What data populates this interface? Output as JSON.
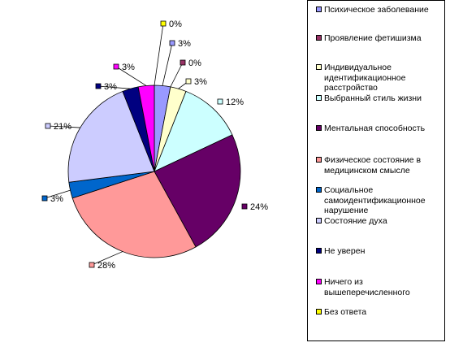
{
  "chart_data": {
    "type": "pie",
    "title": "",
    "slices": [
      {
        "label": "Психическое заболевание",
        "value": 3,
        "value_label": "3%",
        "color": "#9999ff"
      },
      {
        "label": "Проявление фетишизма",
        "value": 0,
        "value_label": "0%",
        "color": "#993366"
      },
      {
        "label": "Индивидуальное идентификационное расстройство",
        "value": 3,
        "value_label": "3%",
        "color": "#ffffcc"
      },
      {
        "label": "Выбранный стиль жизни",
        "value": 12,
        "value_label": "12%",
        "color": "#ccffff"
      },
      {
        "label": "Ментальная способность",
        "value": 24,
        "value_label": "24%",
        "color": "#660066"
      },
      {
        "label": "Физическое состояние в медицинском смысле",
        "value": 28,
        "value_label": "28%",
        "color": "#ff9999"
      },
      {
        "label": "Социальное самоидентификационное нарушение",
        "value": 3,
        "value_label": "3%",
        "color": "#0066cc"
      },
      {
        "label": "Состояние духа",
        "value": 21,
        "value_label": "21%",
        "color": "#ccccff"
      },
      {
        "label": "Не уверен",
        "value": 3,
        "value_label": "3%",
        "color": "#000080"
      },
      {
        "label": "Ничего из вышеперечисленного",
        "value": 3,
        "value_label": "3%",
        "color": "#ff00ff"
      },
      {
        "label": "Без ответа",
        "value": 0,
        "value_label": "0%",
        "color": "#ffff00"
      }
    ],
    "legend_position": "right",
    "show_percent_labels": true
  }
}
